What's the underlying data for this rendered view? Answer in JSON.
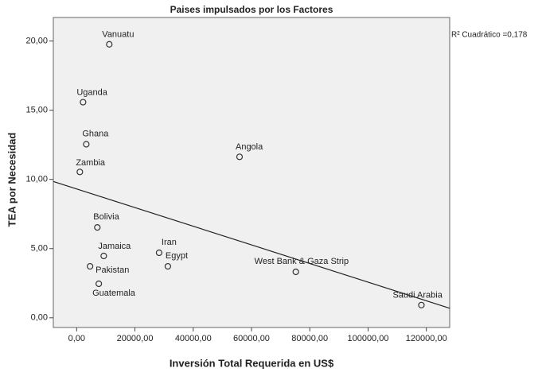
{
  "chart_data": {
    "type": "scatter",
    "title": "Paises impulsados por los Factores",
    "x_label": "Inversión Total Requerida en US$",
    "y_label": "TEA por Necesidad",
    "annotation": "R² Cuadrático =0,178",
    "point_labels": [
      "Vanuatu",
      "Uganda",
      "Ghana",
      "Zambia",
      "Angola",
      "Bolivia",
      "Jamaica",
      "Pakistan",
      "Guatemala",
      "Iran",
      "Egypt",
      "West Bank & Gaza Strip",
      "Saudi Arabia"
    ],
    "x": [
      11200,
      2200,
      3300,
      1100,
      55900,
      7100,
      9300,
      4600,
      7600,
      28300,
      31300,
      75200,
      118300
    ],
    "values": [
      19.76,
      15.58,
      12.54,
      10.54,
      11.63,
      6.53,
      4.47,
      3.72,
      2.46,
      4.7,
      3.72,
      3.32,
      0.92
    ],
    "fit_line": {
      "x": [
        -8000,
        60000,
        128000
      ],
      "y": [
        9.85,
        5.27,
        0.69
      ]
    },
    "color": "#333333",
    "xlim": [
      -8000,
      128000
    ],
    "ylim": [
      -0.7,
      21.7
    ],
    "xticks": [
      {
        "value": 0,
        "label": "0,00"
      },
      {
        "value": 20000,
        "label": "20000,00"
      },
      {
        "value": 40000,
        "label": "40000,00"
      },
      {
        "value": 60000,
        "label": "60000,00"
      },
      {
        "value": 80000,
        "label": "80000,00"
      },
      {
        "value": 100000,
        "label": "100000,00"
      },
      {
        "value": 120000,
        "label": "120000,00"
      }
    ],
    "yticks": [
      {
        "value": 0,
        "label": "0,00"
      },
      {
        "value": 5,
        "label": "5,00"
      },
      {
        "value": 10,
        "label": "10,00"
      },
      {
        "value": 15,
        "label": "15,00"
      },
      {
        "value": 20,
        "label": "20,00"
      }
    ]
  }
}
